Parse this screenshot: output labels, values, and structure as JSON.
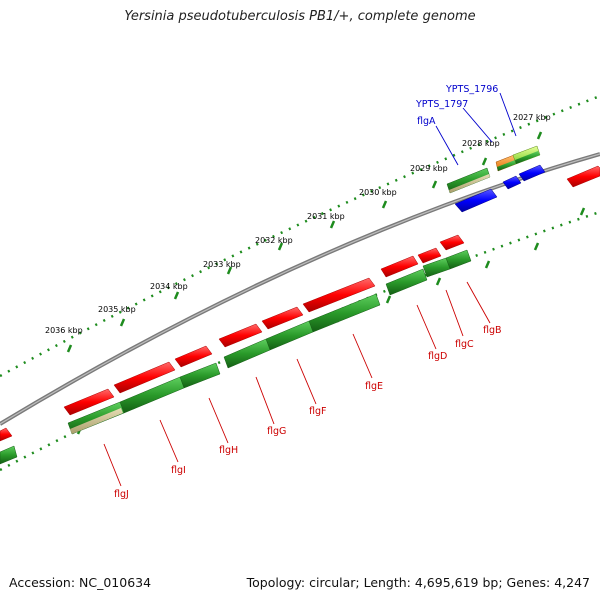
{
  "title": "Yersinia pseudotuberculosis PB1/+, complete genome",
  "footer": {
    "accession_label": "Accession: NC_010634",
    "summary": "Topology: circular; Length: 4,695,619 bp; Genes: 4,247"
  },
  "scale_labels": [
    "2027 kbp",
    "2028 kbp",
    "2029 kbp",
    "2030 kbp",
    "2031 kbp",
    "2032 kbp",
    "2033 kbp",
    "2034 kbp",
    "2035 kbp",
    "2036 kbp"
  ],
  "gene_labels": [
    "YPTS_1796",
    "YPTS_1797",
    "flgA",
    "flgB",
    "flgC",
    "flgD",
    "flgE",
    "flgF",
    "flgG",
    "flgH",
    "flgI",
    "flgJ"
  ],
  "colors": {
    "forward_gene": "#ff0000",
    "reverse_gene": "#2a9a2a",
    "cds_blue": "#0000ff",
    "backbone": "#808080",
    "tick": "#1e8c1e",
    "label_blue": "#0000cc",
    "label_red": "#cc0000"
  }
}
